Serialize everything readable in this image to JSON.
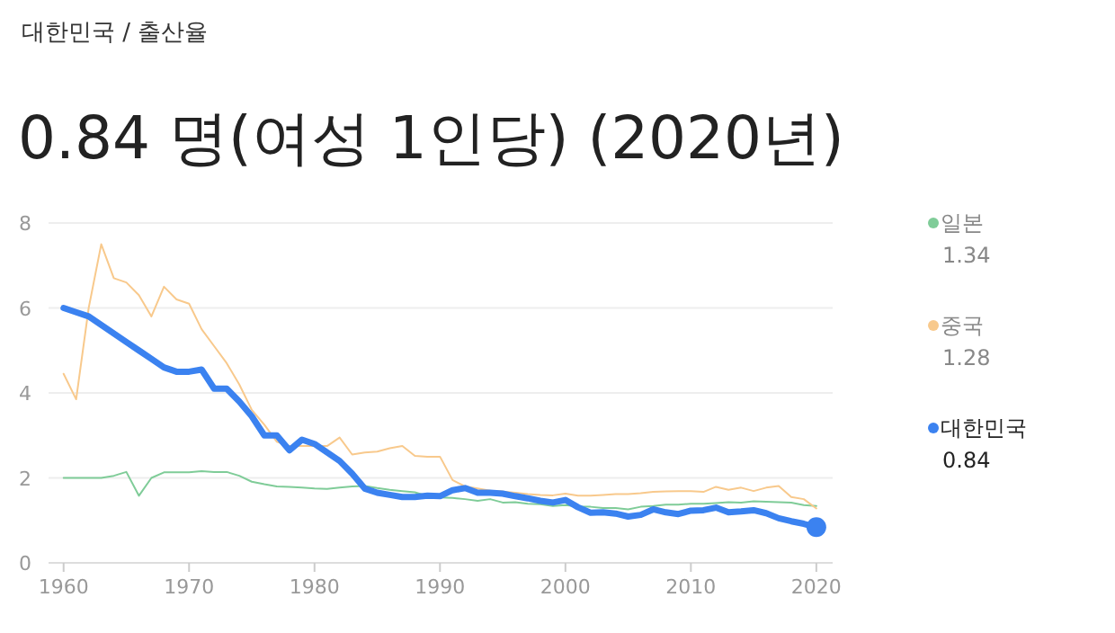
{
  "chart_data": {
    "type": "line",
    "subtitle": "대한민국 / 출산율",
    "title": "0.84 명(여성 1인당) (2020년)",
    "x": [
      1960,
      1961,
      1962,
      1963,
      1964,
      1965,
      1966,
      1967,
      1968,
      1969,
      1970,
      1971,
      1972,
      1973,
      1974,
      1975,
      1976,
      1977,
      1978,
      1979,
      1980,
      1981,
      1982,
      1983,
      1984,
      1985,
      1986,
      1987,
      1988,
      1989,
      1990,
      1991,
      1992,
      1993,
      1994,
      1995,
      1996,
      1997,
      1998,
      1999,
      2000,
      2001,
      2002,
      2003,
      2004,
      2005,
      2006,
      2007,
      2008,
      2009,
      2010,
      2011,
      2012,
      2013,
      2014,
      2015,
      2016,
      2017,
      2018,
      2019,
      2020
    ],
    "xlim": [
      1958.8,
      2021.3
    ],
    "xticks": [
      1960,
      1970,
      1980,
      1990,
      2000,
      2010,
      2020
    ],
    "ylim": [
      0,
      8
    ],
    "yticks": [
      0,
      2,
      4,
      6,
      8
    ],
    "grid": "y",
    "legend": "right",
    "series": [
      {
        "name": "일본",
        "color": "#7fcc98",
        "values": [
          2.0,
          2.0,
          2.0,
          2.0,
          2.05,
          2.14,
          1.58,
          2.0,
          2.13,
          2.13,
          2.13,
          2.16,
          2.14,
          2.14,
          2.05,
          1.91,
          1.85,
          1.8,
          1.79,
          1.77,
          1.75,
          1.74,
          1.77,
          1.8,
          1.81,
          1.76,
          1.72,
          1.69,
          1.66,
          1.57,
          1.54,
          1.53,
          1.5,
          1.46,
          1.5,
          1.42,
          1.43,
          1.39,
          1.38,
          1.34,
          1.36,
          1.33,
          1.32,
          1.29,
          1.29,
          1.26,
          1.32,
          1.34,
          1.37,
          1.37,
          1.39,
          1.39,
          1.41,
          1.43,
          1.42,
          1.45,
          1.44,
          1.43,
          1.42,
          1.36,
          1.34
        ]
      },
      {
        "name": "중국",
        "color": "#f8c98c",
        "values": [
          4.45,
          3.85,
          6.0,
          7.5,
          6.7,
          6.6,
          6.3,
          5.8,
          6.5,
          6.2,
          6.1,
          5.5,
          5.1,
          4.7,
          4.2,
          3.6,
          3.25,
          2.85,
          2.75,
          2.75,
          2.75,
          2.75,
          2.95,
          2.55,
          2.6,
          2.62,
          2.7,
          2.75,
          2.52,
          2.5,
          2.5,
          1.95,
          1.8,
          1.75,
          1.7,
          1.68,
          1.65,
          1.62,
          1.6,
          1.59,
          1.63,
          1.58,
          1.58,
          1.6,
          1.62,
          1.62,
          1.64,
          1.67,
          1.68,
          1.69,
          1.69,
          1.67,
          1.79,
          1.72,
          1.77,
          1.69,
          1.77,
          1.81,
          1.55,
          1.5,
          1.28
        ]
      },
      {
        "name": "대한민국",
        "color": "#3b82f0",
        "values": [
          6.0,
          5.9,
          5.8,
          5.6,
          5.4,
          5.2,
          5.0,
          4.8,
          4.6,
          4.5,
          4.5,
          4.55,
          4.1,
          4.1,
          3.8,
          3.45,
          3.0,
          3.0,
          2.65,
          2.9,
          2.8,
          2.6,
          2.4,
          2.1,
          1.75,
          1.65,
          1.6,
          1.55,
          1.55,
          1.58,
          1.57,
          1.71,
          1.76,
          1.65,
          1.65,
          1.63,
          1.57,
          1.52,
          1.46,
          1.42,
          1.48,
          1.31,
          1.18,
          1.19,
          1.16,
          1.09,
          1.13,
          1.26,
          1.19,
          1.15,
          1.23,
          1.24,
          1.3,
          1.19,
          1.21,
          1.24,
          1.17,
          1.05,
          0.98,
          0.92,
          0.84
        ]
      }
    ],
    "annotations": [
      "1.34",
      "1.28",
      "0.84"
    ]
  }
}
